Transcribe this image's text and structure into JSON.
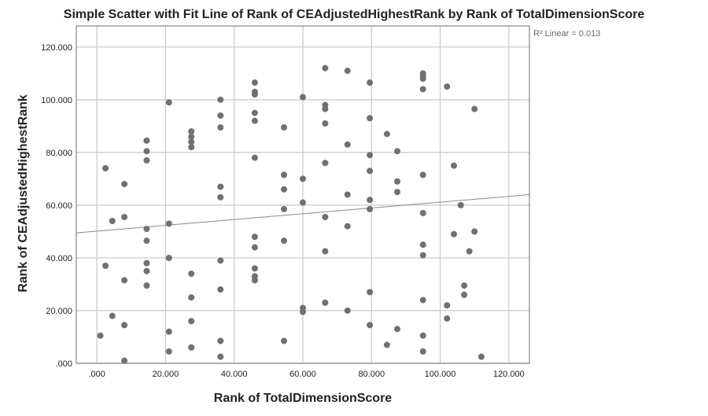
{
  "chart_data": {
    "type": "scatter",
    "title": "Simple Scatter with Fit Line of Rank of CEAdjustedHighestRank by Rank of TotalDimensionScore",
    "xlabel": "Rank of TotalDimensionScore",
    "ylabel": "Rank of CEAdjustedHighestRank",
    "xlim": [
      -6,
      126
    ],
    "ylim": [
      0,
      128
    ],
    "x_ticks": [
      0,
      20,
      40,
      60,
      80,
      100,
      120
    ],
    "x_tick_labels": [
      ".000",
      "20.000",
      "40.000",
      "60.000",
      "80.000",
      "100.000",
      "120.000"
    ],
    "y_ticks": [
      0,
      20,
      40,
      60,
      80,
      100,
      120
    ],
    "y_tick_labels": [
      ".000",
      "20.000",
      "40.000",
      "60.000",
      "80.000",
      "100.000",
      "120.000"
    ],
    "grid": true,
    "r2_annotation": "R² Linear = 0.013",
    "fit_line": {
      "x": [
        -6,
        126
      ],
      "y": [
        49.5,
        64.0
      ]
    },
    "colors": {
      "points": "#707070",
      "fit_line": "#8a8a8a",
      "grid": "#c8c8c8"
    },
    "points": [
      [
        1,
        10.5
      ],
      [
        2.5,
        74
      ],
      [
        2.5,
        37
      ],
      [
        4.5,
        54
      ],
      [
        4.5,
        18
      ],
      [
        8,
        68
      ],
      [
        8,
        55.5
      ],
      [
        8,
        31.5
      ],
      [
        8,
        14.5
      ],
      [
        8,
        1
      ],
      [
        14.5,
        84.5
      ],
      [
        14.5,
        80.5
      ],
      [
        14.5,
        77
      ],
      [
        14.5,
        51
      ],
      [
        14.5,
        46.5
      ],
      [
        14.5,
        38
      ],
      [
        14.5,
        35
      ],
      [
        14.5,
        29.5
      ],
      [
        21,
        99
      ],
      [
        21,
        53
      ],
      [
        21,
        40
      ],
      [
        21,
        12
      ],
      [
        21,
        4.5
      ],
      [
        27.5,
        88
      ],
      [
        27.5,
        86
      ],
      [
        27.5,
        84
      ],
      [
        27.5,
        82
      ],
      [
        27.5,
        34
      ],
      [
        27.5,
        25
      ],
      [
        27.5,
        16
      ],
      [
        27.5,
        6
      ],
      [
        36,
        100
      ],
      [
        36,
        94
      ],
      [
        36,
        89.5
      ],
      [
        36,
        67
      ],
      [
        36,
        63
      ],
      [
        36,
        39
      ],
      [
        36,
        28
      ],
      [
        36,
        8.5
      ],
      [
        36,
        2.5
      ],
      [
        46,
        106.5
      ],
      [
        46,
        103
      ],
      [
        46,
        102
      ],
      [
        46,
        95
      ],
      [
        46,
        92
      ],
      [
        46,
        78
      ],
      [
        46,
        48
      ],
      [
        46,
        44
      ],
      [
        46,
        36
      ],
      [
        46,
        33
      ],
      [
        46,
        31.5
      ],
      [
        54.5,
        89.5
      ],
      [
        54.5,
        71.5
      ],
      [
        54.5,
        66
      ],
      [
        54.5,
        58.5
      ],
      [
        54.5,
        46.5
      ],
      [
        54.5,
        8.5
      ],
      [
        60,
        101
      ],
      [
        60,
        70
      ],
      [
        60,
        61
      ],
      [
        60,
        21
      ],
      [
        60,
        19.5
      ],
      [
        66.5,
        112
      ],
      [
        66.5,
        98
      ],
      [
        66.5,
        96.5
      ],
      [
        66.5,
        91
      ],
      [
        66.5,
        76
      ],
      [
        66.5,
        55.5
      ],
      [
        66.5,
        42.5
      ],
      [
        66.5,
        23
      ],
      [
        73,
        111
      ],
      [
        73,
        83
      ],
      [
        73,
        64
      ],
      [
        73,
        52
      ],
      [
        73,
        20
      ],
      [
        79.5,
        106.5
      ],
      [
        79.5,
        93
      ],
      [
        79.5,
        79
      ],
      [
        79.5,
        73
      ],
      [
        79.5,
        62
      ],
      [
        79.5,
        58.5
      ],
      [
        79.5,
        27
      ],
      [
        79.5,
        14.5
      ],
      [
        84.5,
        87
      ],
      [
        84.5,
        7
      ],
      [
        87.5,
        80.5
      ],
      [
        87.5,
        69
      ],
      [
        87.5,
        65
      ],
      [
        87.5,
        13
      ],
      [
        95,
        110
      ],
      [
        95,
        109
      ],
      [
        95,
        108
      ],
      [
        95,
        104
      ],
      [
        95,
        71.5
      ],
      [
        95,
        57
      ],
      [
        95,
        45
      ],
      [
        95,
        41
      ],
      [
        95,
        24
      ],
      [
        95,
        10.5
      ],
      [
        95,
        4.5
      ],
      [
        102,
        105
      ],
      [
        102,
        22
      ],
      [
        102,
        17
      ],
      [
        104,
        75
      ],
      [
        104,
        49
      ],
      [
        106,
        60
      ],
      [
        107,
        29.5
      ],
      [
        107,
        26
      ],
      [
        108.5,
        42.5
      ],
      [
        110,
        96.5
      ],
      [
        110,
        50
      ],
      [
        112,
        2.5
      ]
    ]
  }
}
